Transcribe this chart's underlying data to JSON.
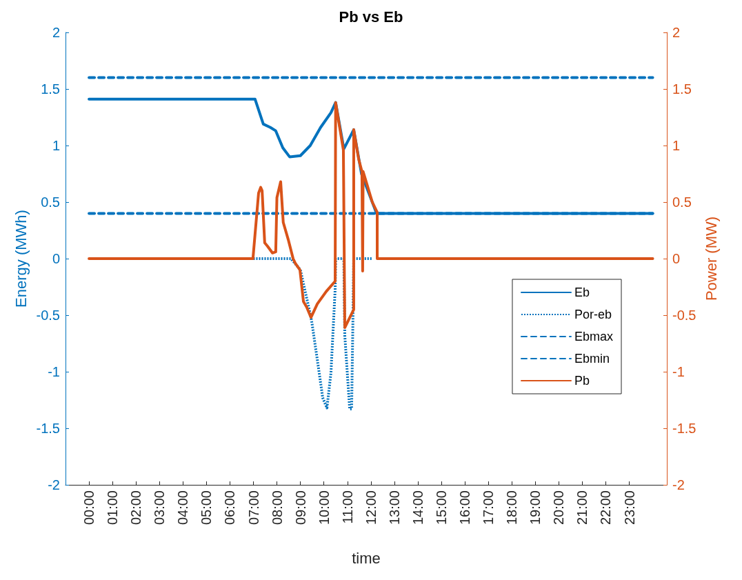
{
  "chart_data": {
    "type": "line",
    "title": "Pb vs Eb",
    "xlabel": "time",
    "ylabel": "Energy (MWh)",
    "y2label": "Power (MW)",
    "xlim": [
      -1,
      24.6
    ],
    "xticks": [
      {
        "value": 0,
        "label": "00:00"
      },
      {
        "value": 1,
        "label": "01:00"
      },
      {
        "value": 2,
        "label": "02:00"
      },
      {
        "value": 3,
        "label": "03:00"
      },
      {
        "value": 4,
        "label": "04:00"
      },
      {
        "value": 5,
        "label": "05:00"
      },
      {
        "value": 6,
        "label": "06:00"
      },
      {
        "value": 7,
        "label": "07:00"
      },
      {
        "value": 8,
        "label": "08:00"
      },
      {
        "value": 9,
        "label": "09:00"
      },
      {
        "value": 10,
        "label": "10:00"
      },
      {
        "value": 11,
        "label": "11:00"
      },
      {
        "value": 12,
        "label": "12:00"
      },
      {
        "value": 13,
        "label": "13:00"
      },
      {
        "value": 14,
        "label": "14:00"
      },
      {
        "value": 15,
        "label": "15:00"
      },
      {
        "value": 16,
        "label": "16:00"
      },
      {
        "value": 17,
        "label": "17:00"
      },
      {
        "value": 18,
        "label": "18:00"
      },
      {
        "value": 19,
        "label": "19:00"
      },
      {
        "value": 20,
        "label": "20:00"
      },
      {
        "value": 21,
        "label": "21:00"
      },
      {
        "value": 22,
        "label": "22:00"
      },
      {
        "value": 23,
        "label": "23:00"
      }
    ],
    "ylim": [
      -2,
      2
    ],
    "yticks": [
      -2,
      -1.5,
      -1,
      -0.5,
      0,
      0.5,
      1,
      1.5,
      2
    ],
    "y2lim": [
      -2,
      2
    ],
    "y2ticks": [
      -2,
      -1.5,
      -1,
      -0.5,
      0,
      0.5,
      1,
      1.5,
      2
    ],
    "grid": false,
    "legend": "right",
    "marker": "none",
    "series": [
      {
        "name": "Eb",
        "color": "#0072bd",
        "line_style": "solid",
        "x": [
          0,
          7.0,
          7.07,
          7.42,
          7.72,
          7.95,
          8.25,
          8.54,
          9.0,
          9.42,
          9.86,
          10.3,
          10.5,
          10.85,
          11.27,
          11.6,
          12.24,
          24
        ],
        "values": [
          1.41,
          1.41,
          1.41,
          1.19,
          1.16,
          1.13,
          0.98,
          0.9,
          0.91,
          1.0,
          1.16,
          1.29,
          1.38,
          0.97,
          1.14,
          0.75,
          0.4,
          0.4
        ]
      },
      {
        "name": "Por-eb",
        "color": "#0072bd",
        "line_style": "dotted",
        "x": [
          7.0,
          8.6,
          9.0,
          9.45,
          9.5,
          9.71,
          9.95,
          10.13,
          10.3,
          10.48,
          10.5,
          10.85,
          10.89,
          11.1,
          11.18,
          11.24,
          11.27,
          12.06
        ],
        "values": [
          0,
          0,
          -0.1,
          -0.52,
          -0.58,
          -0.88,
          -1.23,
          -1.32,
          -1.01,
          -0.27,
          0,
          0,
          -0.68,
          -1.33,
          -1.33,
          -0.48,
          0,
          0
        ]
      },
      {
        "name": "Ebmax",
        "color": "#0072bd",
        "line_style": "dashed",
        "x": [
          0,
          24
        ],
        "values": [
          1.6,
          1.6
        ]
      },
      {
        "name": "Ebmin",
        "color": "#0072bd",
        "line_style": "dashed",
        "x": [
          0,
          24
        ],
        "values": [
          0.4,
          0.4
        ]
      },
      {
        "name": "Pb",
        "color": "#d95319",
        "line_style": "solid",
        "axis": "y2",
        "x": [
          0,
          6.98,
          7.22,
          7.31,
          7.37,
          7.48,
          7.6,
          7.81,
          7.95,
          8.0,
          8.16,
          8.27,
          8.48,
          8.69,
          8.78,
          8.98,
          9.13,
          9.27,
          9.45,
          9.72,
          10.1,
          10.48,
          10.5,
          10.68,
          10.83,
          10.89,
          11.27,
          11.27,
          11.48,
          11.62,
          11.65,
          11.67,
          12.06,
          12.27,
          12.27,
          24
        ],
        "values": [
          0,
          0,
          0.58,
          0.63,
          0.6,
          0.14,
          0.11,
          0.05,
          0.06,
          0.54,
          0.68,
          0.32,
          0.17,
          0,
          -0.04,
          -0.1,
          -0.38,
          -0.43,
          -0.52,
          -0.4,
          -0.29,
          -0.2,
          1.38,
          1.15,
          0.96,
          -0.61,
          -0.45,
          1.14,
          0.88,
          0.77,
          -0.11,
          0.77,
          0.5,
          0.41,
          0,
          0
        ]
      }
    ]
  }
}
